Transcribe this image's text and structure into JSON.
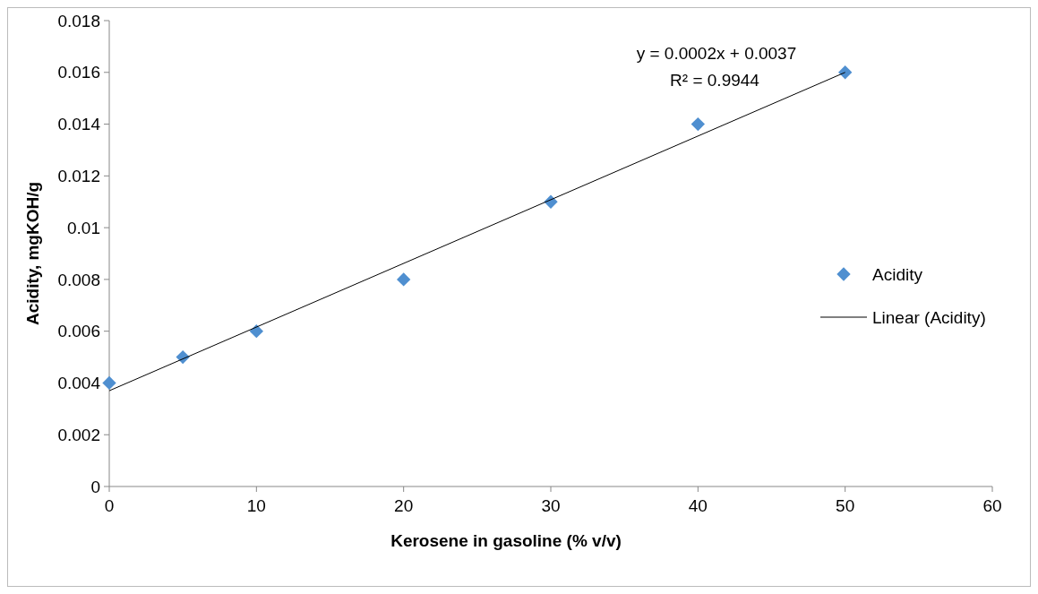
{
  "chart_data": {
    "type": "scatter",
    "xlabel": "Kerosene in gasoline (% v/v)",
    "ylabel": "Acidity, mgKOH/g",
    "x": [
      0,
      5,
      10,
      20,
      30,
      40,
      50
    ],
    "series": [
      {
        "name": "Acidity",
        "color": "#4f8fd0",
        "marker": "diamond",
        "values": [
          0.004,
          0.005,
          0.006,
          0.008,
          0.011,
          0.014,
          0.016
        ]
      },
      {
        "name": "Linear (Acidity)",
        "type": "line",
        "color": "#000000",
        "x": [
          0,
          50
        ],
        "values": [
          0.0037,
          0.016
        ]
      }
    ],
    "annotations": [
      "y = 0.0002x + 0.0037",
      "R² = 0.9944"
    ],
    "xlim": [
      0,
      60
    ],
    "xticks": [
      0,
      10,
      20,
      30,
      40,
      50,
      60
    ],
    "ylim": [
      0,
      0.018
    ],
    "yticks": [
      0,
      0.002,
      0.004,
      0.006,
      0.008,
      0.01,
      0.012,
      0.014,
      0.016,
      0.018
    ],
    "grid": false,
    "legend": "right"
  }
}
